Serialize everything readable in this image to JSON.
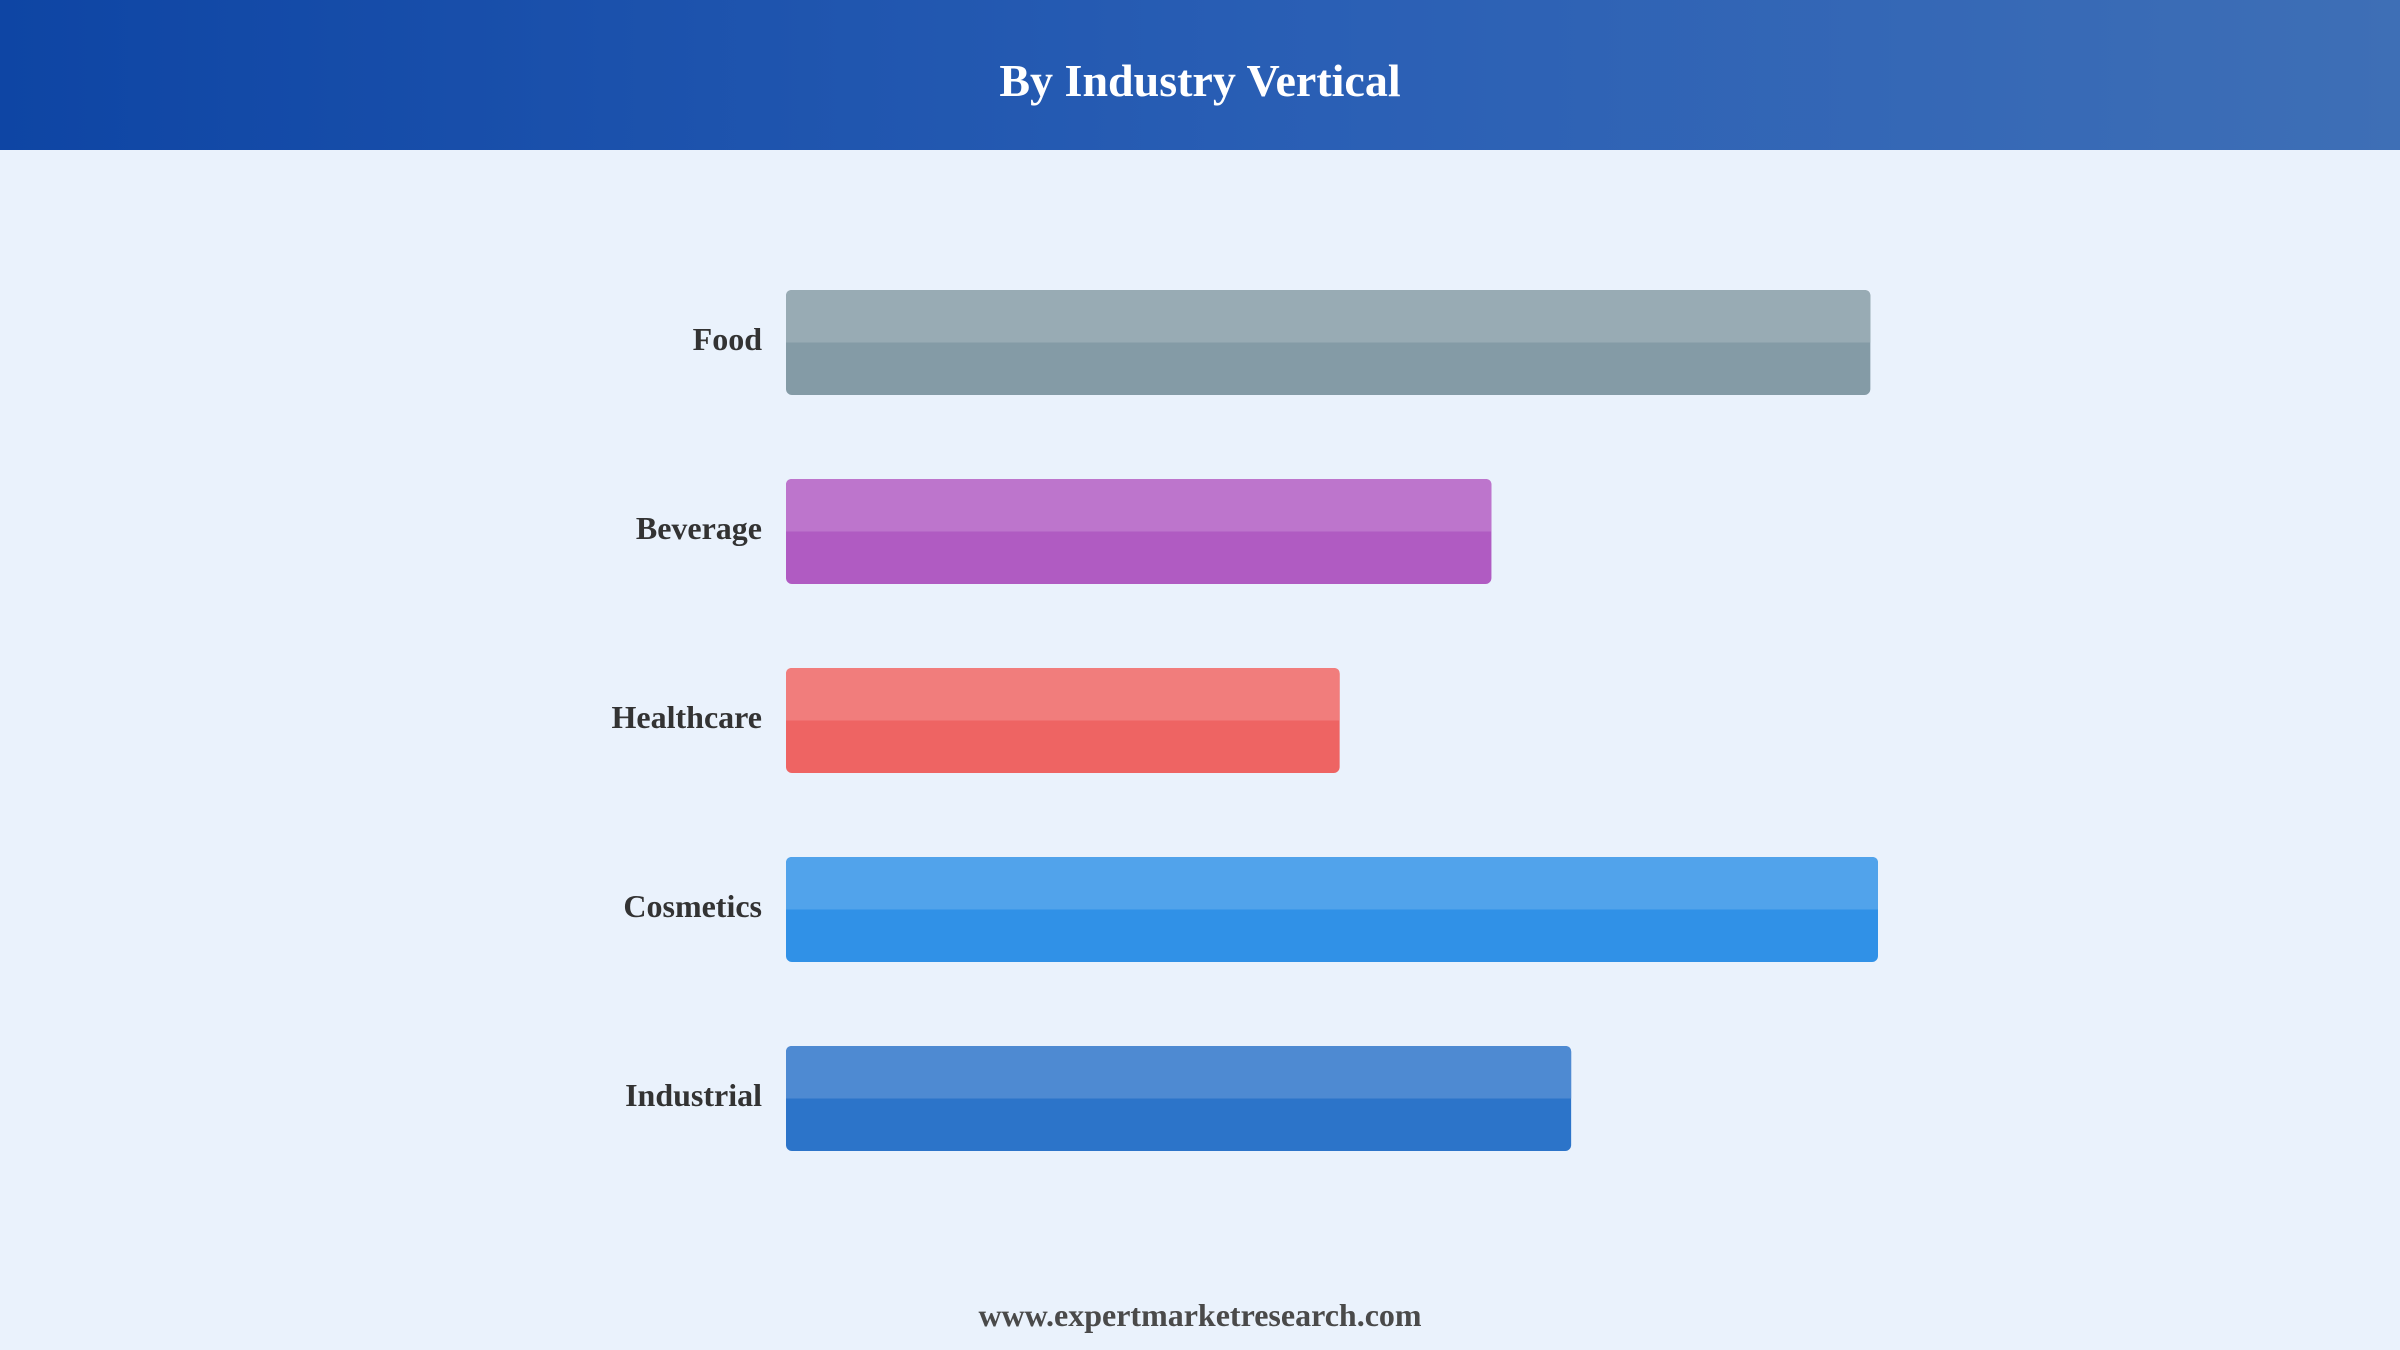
{
  "header": {
    "title": "By Industry Vertical"
  },
  "footer": {
    "website": "www.expertmarketresearch.com"
  },
  "colors": {
    "header_start": "#0E45A4",
    "header_end": "#3E6FB6",
    "background": "#EAF2FC",
    "label_text": "#333333"
  },
  "chart_data": {
    "type": "bar",
    "orientation": "horizontal",
    "title": "By Industry Vertical",
    "xlabel": "",
    "ylabel": "",
    "grid": false,
    "legend": "none",
    "categories": [
      "Food",
      "Beverage",
      "Healthcare",
      "Cosmetics",
      "Industrial"
    ],
    "values": [
      99.3,
      64.6,
      50.7,
      100,
      71.9
    ],
    "xlim": [
      0,
      100
    ],
    "bar_colors": [
      "#849BA6",
      "#B05BC2",
      "#EE6463",
      "#3091E7",
      "#2C74C9"
    ]
  }
}
